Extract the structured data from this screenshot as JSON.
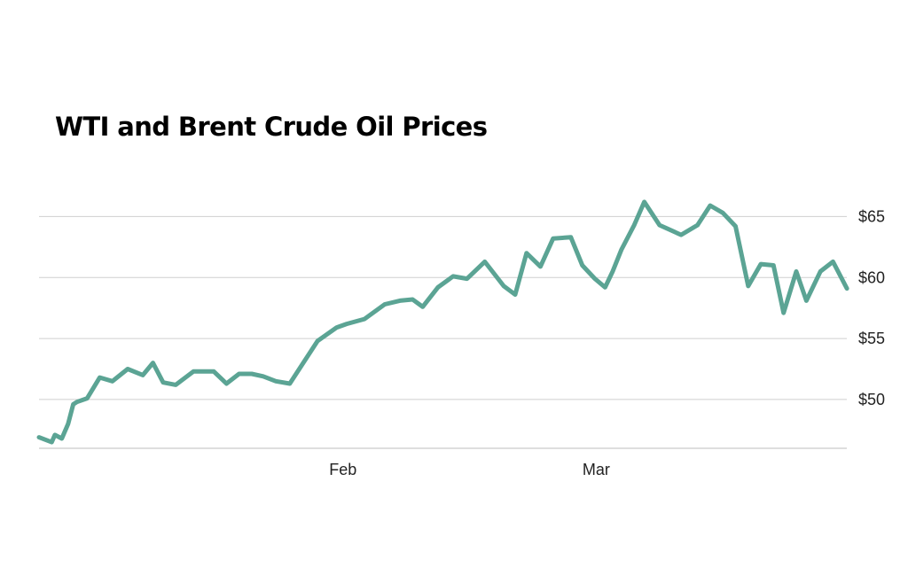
{
  "chart_data": {
    "type": "line",
    "title": "WTI and Brent Crude Oil Prices",
    "xlabel": "",
    "ylabel": "",
    "y_ticks": [
      {
        "value": 50,
        "label": "$50"
      },
      {
        "value": 55,
        "label": "$55"
      },
      {
        "value": 60,
        "label": "$60"
      },
      {
        "value": 65,
        "label": "$65"
      }
    ],
    "ylim": [
      46,
      67.5
    ],
    "x_ticks": [
      {
        "x": 24,
        "label": "Feb"
      },
      {
        "x": 44,
        "label": "Mar"
      }
    ],
    "xlim": [
      0,
      64
    ],
    "grid": true,
    "legend": "none",
    "series": [
      {
        "color": "#5ba494",
        "x": [
          0,
          1,
          1.25,
          1.8,
          2.3,
          2.7,
          3,
          3.8,
          4.8,
          5.8,
          7,
          8.2,
          9,
          9.8,
          10.8,
          12.2,
          13.8,
          14.8,
          15.8,
          16.8,
          17.7,
          18.7,
          19.8,
          20.8,
          22,
          23.5,
          24.3,
          25.7,
          27.3,
          28.5,
          29.5,
          30.3,
          31.5,
          32.7,
          33.8,
          35.2,
          36.7,
          37.6,
          38.5,
          39.6,
          40.6,
          42.0,
          42.9,
          43.9,
          44.7,
          45.3,
          46.0,
          47.0,
          47.8,
          49.0,
          50.7,
          52.0,
          53.0,
          54.0,
          55.0,
          56.0,
          57.0,
          58.0,
          58.8,
          59.8,
          60.6,
          61.7,
          62.7,
          63.8
        ],
        "y": [
          46.9,
          46.5,
          47.1,
          46.8,
          48.0,
          49.6,
          49.8,
          50.1,
          51.8,
          51.5,
          52.5,
          52.0,
          53.0,
          51.4,
          51.2,
          52.3,
          52.3,
          51.3,
          52.1,
          52.1,
          51.9,
          51.5,
          51.3,
          52.9,
          54.8,
          55.9,
          56.2,
          56.6,
          57.8,
          58.1,
          58.2,
          57.6,
          59.2,
          60.1,
          59.9,
          61.3,
          59.3,
          58.6,
          62.0,
          60.9,
          63.2,
          63.3,
          61.0,
          59.9,
          59.2,
          60.5,
          62.3,
          64.3,
          66.2,
          64.3,
          63.5,
          64.3,
          65.9,
          65.3,
          64.2,
          59.3,
          61.1,
          61.0,
          57.1,
          60.5,
          58.1,
          60.5,
          61.3,
          59.1
        ]
      }
    ]
  }
}
